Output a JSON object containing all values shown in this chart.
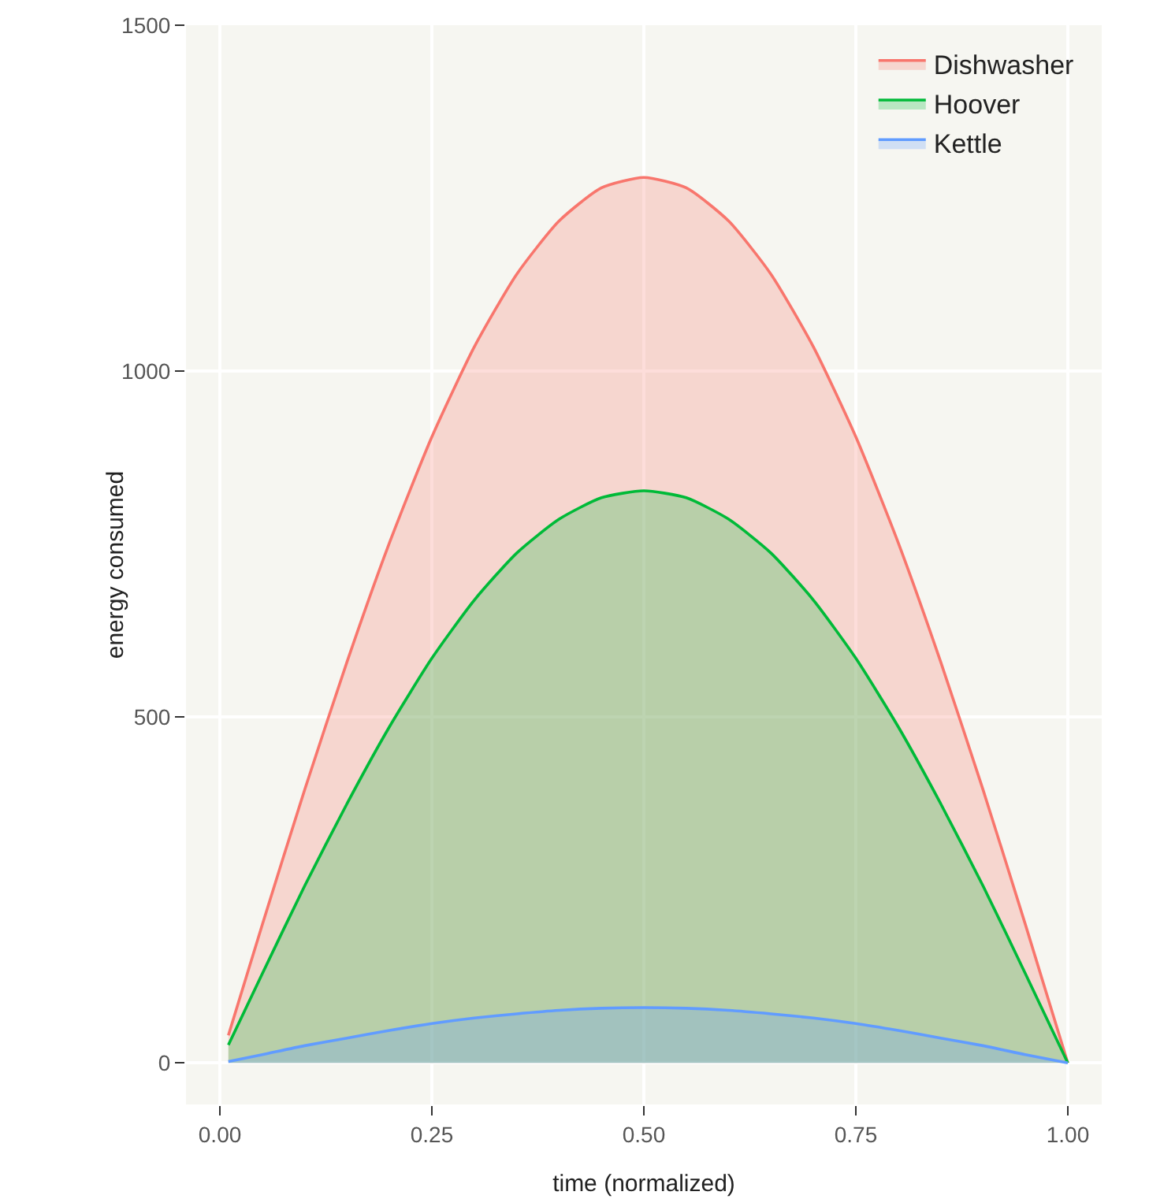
{
  "chart_data": {
    "type": "area",
    "xlabel": "time (normalized)",
    "ylabel": "energy consumed",
    "x": [
      0.01,
      0.05,
      0.1,
      0.15,
      0.2,
      0.25,
      0.3,
      0.35,
      0.4,
      0.45,
      0.5,
      0.55,
      0.6,
      0.65,
      0.7,
      0.75,
      0.8,
      0.85,
      0.9,
      0.95,
      1.0
    ],
    "series": [
      {
        "name": "Dishwasher",
        "color": "#f8766d",
        "values": [
          40,
          200,
          395,
          580,
          752,
          905,
          1035,
          1140,
          1217,
          1265,
          1280,
          1265,
          1217,
          1140,
          1035,
          905,
          752,
          580,
          395,
          200,
          0
        ]
      },
      {
        "name": "Hoover",
        "color": "#00ba38",
        "values": [
          26,
          129,
          256,
          375,
          486,
          585,
          669,
          737,
          786,
          817,
          827,
          817,
          786,
          737,
          669,
          585,
          486,
          375,
          256,
          129,
          0
        ]
      },
      {
        "name": "Kettle",
        "color": "#619cff",
        "values": [
          2,
          12,
          25,
          36,
          47,
          57,
          65,
          71,
          76,
          79,
          80,
          79,
          76,
          71,
          65,
          57,
          47,
          36,
          25,
          12,
          0
        ]
      }
    ],
    "xlim": [
      -0.04,
      1.04
    ],
    "xticks": [
      {
        "value": 0,
        "label": "0.00"
      },
      {
        "value": 0.25,
        "label": "0.25"
      },
      {
        "value": 0.5,
        "label": "0.50"
      },
      {
        "value": 0.75,
        "label": "0.75"
      },
      {
        "value": 1,
        "label": "1.00"
      }
    ],
    "ylim": [
      -60,
      1500
    ],
    "yticks": [
      0,
      500,
      1000,
      1500
    ],
    "grid": true,
    "legend": "top right"
  }
}
